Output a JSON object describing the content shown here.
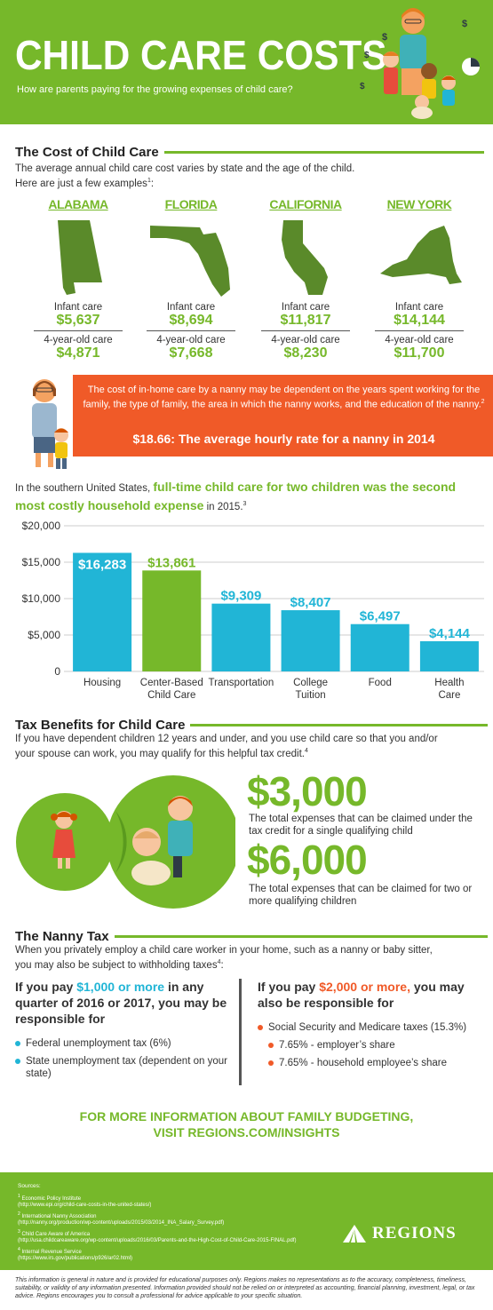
{
  "header": {
    "title": "CHILD CARE COSTS",
    "subtitle": "How are parents paying for the growing expenses of child care?"
  },
  "cost_section": {
    "heading": "The Cost of Child Care",
    "intro_line1": "The average annual child care cost varies by state and the age of the child.",
    "intro_line2": "Here are just a few examples",
    "intro_sup": "1",
    "intro_end": ":",
    "infant_label": "Infant care",
    "four_year_label": "4-year-old care",
    "states": [
      {
        "name": "ALABAMA",
        "infant": "$5,637",
        "four_year": "$4,871"
      },
      {
        "name": "FLORIDA",
        "infant": "$8,694",
        "four_year": "$7,668"
      },
      {
        "name": "CALIFORNIA",
        "infant": "$11,817",
        "four_year": "$8,230"
      },
      {
        "name": "NEW YORK",
        "infant": "$14,144",
        "four_year": "$11,700"
      }
    ]
  },
  "nanny_banner": {
    "text": "The cost of in-home care by a nanny may be dependent on the years spent working for the family, the type of family, the area in which the nanny works, and the education of the nanny.",
    "sup": "2",
    "rate": "$18.66: The average hourly rate for a nanny in 2014"
  },
  "chart_intro": {
    "pre": "In the southern United States,",
    "emphasis": "full-time child care for two children was the second most costly household expense",
    "post": "in 2015.",
    "sup": "3"
  },
  "chart_data": {
    "type": "bar",
    "categories": [
      "Housing",
      "Center-Based Child Care",
      "Transportation",
      "College Tuition",
      "Food",
      "Health Care"
    ],
    "category_lines": [
      [
        "Housing"
      ],
      [
        "Center-Based",
        "Child Care"
      ],
      [
        "Transportation"
      ],
      [
        "College",
        "Tuition"
      ],
      [
        "Food"
      ],
      [
        "Health",
        "Care"
      ]
    ],
    "values": [
      16283,
      13861,
      9309,
      8407,
      6497,
      4144
    ],
    "value_labels": [
      "$16,283",
      "$13,861",
      "$9,309",
      "$8,407",
      "$6,497",
      "$4,144"
    ],
    "highlight_index": 1,
    "ylim": [
      0,
      20000
    ],
    "yticks": [
      0,
      5000,
      10000,
      15000,
      20000
    ],
    "ytick_labels": [
      "0",
      "$5,000",
      "$10,000",
      "$15,000",
      "$20,000"
    ],
    "colors": {
      "bar": "#21b5d6",
      "highlight": "#76b82a",
      "grid": "#cccccc"
    },
    "grid": true
  },
  "tax_section": {
    "heading": "Tax Benefits for Child Care",
    "intro_line1": "If you have dependent children 12 years and under, and you use child care so that you and/or",
    "intro_line2": "your spouse can work, you may qualify for this helpful tax credit.",
    "sup": "4",
    "amount1": "$3,000",
    "desc1": "The total expenses that can be claimed under the tax credit for a single qualifying child",
    "amount2": "$6,000",
    "desc2": "The total expenses that can be claimed for two or more qualifying children"
  },
  "nanny_tax": {
    "heading": "The Nanny Tax",
    "intro_line1": "When you privately employ a child care worker in your home, such as a nanny or baby sitter,",
    "intro_line2": "you may also be subject to withholding taxes",
    "sup": "4",
    "intro_end": ":",
    "left": {
      "pre": "If you pay ",
      "amount": "$1,000 or more",
      "post": " in any quarter of 2016 or 2017, you may be responsible for",
      "items": [
        "Federal unemployment tax (6%)",
        "State unemployment tax (dependent on your state)"
      ]
    },
    "right": {
      "pre": "If you pay ",
      "amount": "$2,000 or more,",
      "post": " you may also be responsible for",
      "items": [
        "Social Security and Medicare taxes (15.3%)"
      ],
      "subitems": [
        "7.65% - employer’s share",
        "7.65% - household employee’s share"
      ]
    }
  },
  "cta": {
    "line1": "FOR MORE INFORMATION ABOUT FAMILY BUDGETING,",
    "line2": "VISIT REGIONS.COM/INSIGHTS"
  },
  "footer": {
    "sources_heading": "Sources:",
    "sources": [
      {
        "sup": "1",
        "name": "Economic Policy Institute",
        "url": "(http://www.epi.org/child-care-costs-in-the-united-states/)"
      },
      {
        "sup": "2",
        "name": "International Nanny Association",
        "url": "(http://nanny.org/production/wp-content/uploads/2015/03/2014_INA_Salary_Survey.pdf)"
      },
      {
        "sup": "3",
        "name": "Child Care Aware of America",
        "url": "(http://usa.childcareaware.org/wp-content/uploads/2016/03/Parents-and-the-High-Cost-of-Child-Care-2015-FINAL.pdf)"
      },
      {
        "sup": "4",
        "name": "Internal Revenue Service",
        "url": "(https://www.irs.gov/publications/p926/ar02.html)"
      }
    ],
    "logo_text": "REGIONS",
    "colors": {
      "brand_green": "#76b82a"
    }
  },
  "disclaimer": "This information is general in nature and is provided for educational purposes only. Regions makes no representations as to the accuracy, completeness, timeliness, suitability, or validity of any information presented. Information provided should not be relied on or interpreted as accounting, financial planning, investment, legal, or tax advice. Regions encourages you to consult a professional for advice applicable to your specific situation."
}
